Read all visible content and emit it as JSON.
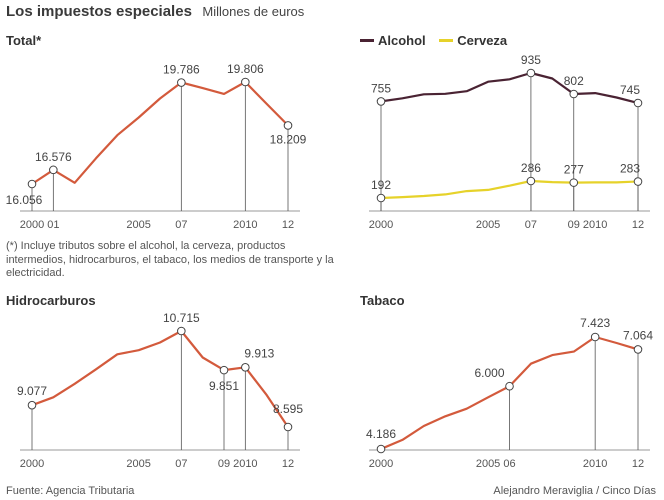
{
  "header": {
    "title": "Los impuestos especiales",
    "units": "Millones de euros"
  },
  "note": "(*) Incluye tributos sobre el alcohol, la cerveza, productos intermedios, hidrocarburos, el tabaco, los medios de transporte y la electricidad.",
  "footer": {
    "source": "Fuente: Agencia Tributaria",
    "credit": "Alejandro Meraviglia / Cinco Días"
  },
  "colors": {
    "main": "#d35a3c",
    "alcohol": "#4a2333",
    "cerveza": "#e6d22a",
    "axis": "#999999",
    "tick_text": "#555555",
    "label_text": "#444444"
  },
  "chart_data": [
    {
      "id": "total",
      "type": "line",
      "title": "Total*",
      "x": [
        2000,
        2001,
        2002,
        2003,
        2004,
        2005,
        2006,
        2007,
        2008,
        2009,
        2010,
        2011,
        2012
      ],
      "series": [
        {
          "values": [
            16056,
            16576,
            16100,
            17000,
            17850,
            18500,
            19200,
            19786,
            19580,
            19370,
            19806,
            19000,
            18209
          ],
          "labels": {
            "0": "16.056",
            "1": "16.576",
            "7": "19.786",
            "10": "19.806",
            "12": "18.209"
          }
        }
      ],
      "tick_labels": {
        "2000": "2000",
        "2001": "01",
        "2005": "2005",
        "2007": "07",
        "2010": "2010",
        "2012": "12"
      }
    },
    {
      "id": "alcohol_cerveza",
      "type": "line",
      "x": [
        2000,
        2001,
        2002,
        2003,
        2004,
        2005,
        2006,
        2007,
        2008,
        2009,
        2010,
        2011,
        2012
      ],
      "series": [
        {
          "name": "Alcohol",
          "values": [
            755,
            775,
            800,
            803,
            820,
            880,
            895,
            935,
            900,
            802,
            808,
            780,
            745
          ],
          "labels": {
            "0": "755",
            "7": "935",
            "9": "802",
            "12": "745"
          }
        },
        {
          "name": "Cerveza",
          "values": [
            192,
            197,
            203,
            212,
            230,
            237,
            260,
            286,
            280,
            277,
            278,
            278,
            283
          ],
          "labels": {
            "0": "192",
            "7": "286",
            "9": "277",
            "12": "283"
          }
        }
      ],
      "tick_labels": {
        "2000": "2000",
        "2005": "2005",
        "2007": "07",
        "2009": "09",
        "2010": "2010",
        "2012": "12"
      }
    },
    {
      "id": "hidrocarburos",
      "type": "line",
      "title": "Hidrocarburos",
      "x": [
        2000,
        2001,
        2002,
        2003,
        2004,
        2005,
        2006,
        2007,
        2008,
        2009,
        2010,
        2011,
        2012
      ],
      "series": [
        {
          "values": [
            9077,
            9250,
            9550,
            9870,
            10200,
            10290,
            10460,
            10715,
            10130,
            9851,
            9913,
            9300,
            8595
          ],
          "labels": {
            "0": "9.077",
            "7": "10.715",
            "9": "9.851",
            "10": "9.913",
            "12": "8.595"
          }
        }
      ],
      "tick_labels": {
        "2000": "2000",
        "2005": "2005",
        "2007": "07",
        "2009": "09",
        "2010": "2010",
        "2012": "12"
      }
    },
    {
      "id": "tabaco",
      "type": "line",
      "title": "Tabaco",
      "x": [
        2000,
        2001,
        2002,
        2003,
        2004,
        2005,
        2006,
        2007,
        2008,
        2009,
        2010,
        2011,
        2012
      ],
      "series": [
        {
          "values": [
            4186,
            4450,
            4850,
            5130,
            5350,
            5680,
            6000,
            6650,
            6900,
            7000,
            7423,
            7250,
            7064
          ],
          "labels": {
            "0": "4.186",
            "6": "6.000",
            "10": "7.423",
            "12": "7.064"
          }
        }
      ],
      "tick_labels": {
        "2000": "2000",
        "2005": "2005",
        "2006": "06",
        "2010": "2010",
        "2012": "12"
      }
    }
  ]
}
